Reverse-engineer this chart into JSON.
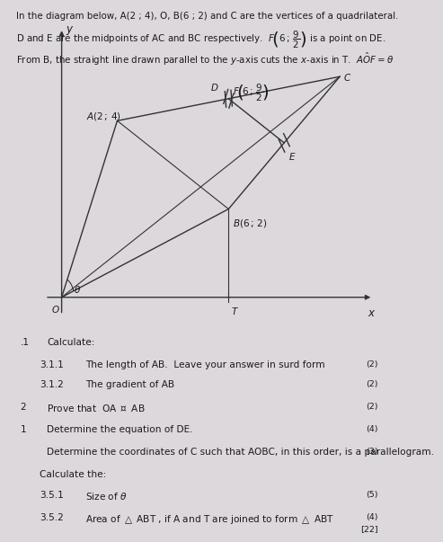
{
  "bg_color": "#ddd8dc",
  "text_color": "#1a1a1a",
  "line_color": "#333333",
  "points": {
    "O": [
      0,
      0
    ],
    "A": [
      2,
      4
    ],
    "B": [
      6,
      2
    ],
    "C": [
      10,
      5
    ],
    "T": [
      6,
      0
    ]
  },
  "header_lines": [
    "In the diagram below, A(2 ; 4), O, B(6 ; 2) and C are the vertices of a quadrilateral.",
    "D and E are the midpoints of AC and BC respectively.  F(6 ; 9/2) is a point on DE.",
    "From B, the straight line drawn parallel to the y-axis cuts the x-axis in T.  AOF = theta"
  ],
  "questions": [
    [
      ".1",
      "Calculate:"
    ],
    [
      "3.1.1",
      "The length of AB.  Leave your answer in surd form",
      "(2)"
    ],
    [
      "3.1.2",
      "The gradient of AB",
      "(2)"
    ],
    [
      "2",
      "Prove that  OA perp AB",
      "(2)"
    ],
    [
      "1",
      "Determine the equation of DE.",
      "(4)"
    ],
    [
      "-",
      "Determine the coordinates of C such that AOBC, in this order, is a parallelogram.",
      "(3)"
    ],
    [
      "",
      "Calculate the:",
      ""
    ],
    [
      "3.5.1",
      "Size of theta",
      "(5)"
    ],
    [
      "3.5.2",
      "Area of triangle ABT , if A and T are joined to form triangle ABT",
      "(4)"
    ]
  ],
  "total_mark": "[22]",
  "axis_xlim": [
    -0.8,
    11.5
  ],
  "axis_ylim": [
    -0.8,
    6.3
  ]
}
